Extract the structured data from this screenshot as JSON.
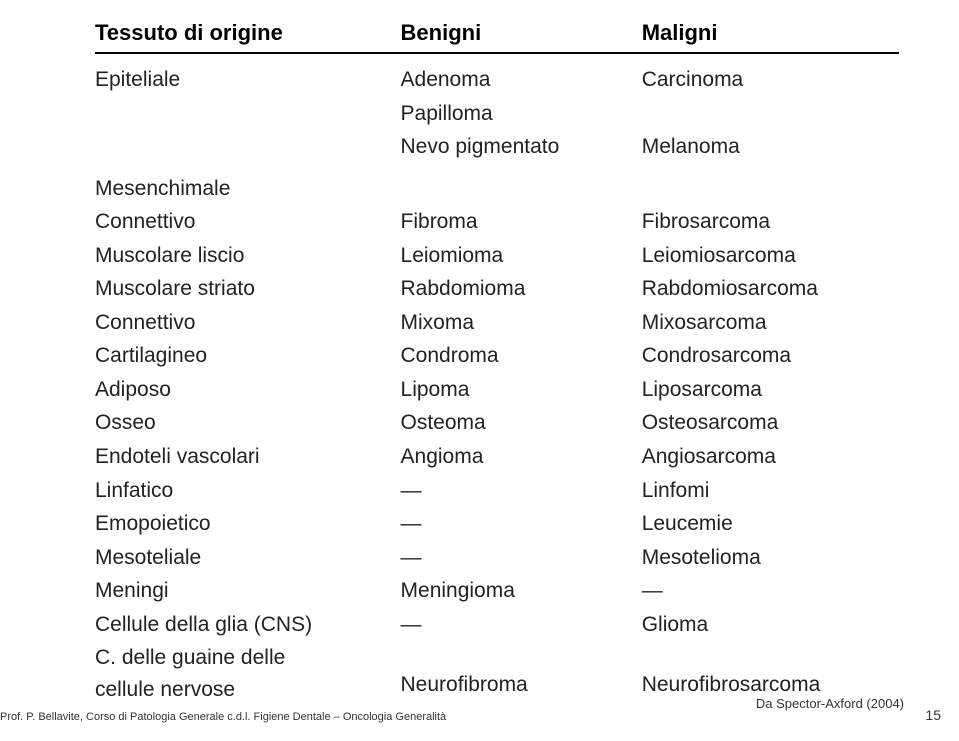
{
  "header": {
    "col1": "Tessuto di origine",
    "col2": "Benigni",
    "col3": "Maligni"
  },
  "rows": [
    {
      "origin": "Epiteliale",
      "benign": "Adenoma",
      "malign": "Carcinoma"
    },
    {
      "origin": "",
      "benign": "Papilloma",
      "malign": ""
    },
    {
      "origin": "",
      "benign": "Nevo pigmentato",
      "malign": "Melanoma"
    },
    {
      "origin": "Mesenchimale",
      "benign": "",
      "malign": "",
      "is_section": true
    },
    {
      "origin": "Connettivo",
      "benign": "Fibroma",
      "malign": "Fibrosarcoma"
    },
    {
      "origin": "Muscolare liscio",
      "benign": "Leiomioma",
      "malign": "Leiomiosarcoma"
    },
    {
      "origin": "Muscolare striato",
      "benign": "Rabdomioma",
      "malign": "Rabdomiosarcoma"
    },
    {
      "origin": "Connettivo",
      "benign": "Mixoma",
      "malign": "Mixosarcoma"
    },
    {
      "origin": "Cartilagineo",
      "benign": "Condroma",
      "malign": "Condrosarcoma"
    },
    {
      "origin": "Adiposo",
      "benign": "Lipoma",
      "malign": "Liposarcoma"
    },
    {
      "origin": "Osseo",
      "benign": "Osteoma",
      "malign": "Osteosarcoma"
    },
    {
      "origin": "Endoteli vascolari",
      "benign": "Angioma",
      "malign": "Angiosarcoma"
    },
    {
      "origin": "Linfatico",
      "benign": "—",
      "malign": "Linfomi"
    },
    {
      "origin": "Emopoietico",
      "benign": "—",
      "malign": "Leucemie"
    },
    {
      "origin": "Mesoteliale",
      "benign": "—",
      "malign": "Mesotelioma"
    },
    {
      "origin": "Meningi",
      "benign": "Meningioma",
      "malign": "—"
    },
    {
      "origin": "Cellule della glia (CNS)",
      "benign": "—",
      "malign": "Glioma"
    },
    {
      "origin": "C. delle guaine delle\ncellule nervose",
      "benign": "Neurofibroma",
      "malign": "Neurofibrosarcoma",
      "multi": true
    }
  ],
  "footer": {
    "left": "Prof. P. Bellavite, Corso di Patologia Generale c.d.l. Figiene Dentale – Oncologia Generalità",
    "right": "Da Spector-Axford (2004)",
    "page": "15"
  },
  "style": {
    "background_color": "#ffffff",
    "text_color": "#222222",
    "header_fontsize": 22,
    "body_fontsize": 21,
    "footer_fontsize": 11,
    "border_color": "#000000",
    "font_family": "Arial, Helvetica, sans-serif"
  }
}
